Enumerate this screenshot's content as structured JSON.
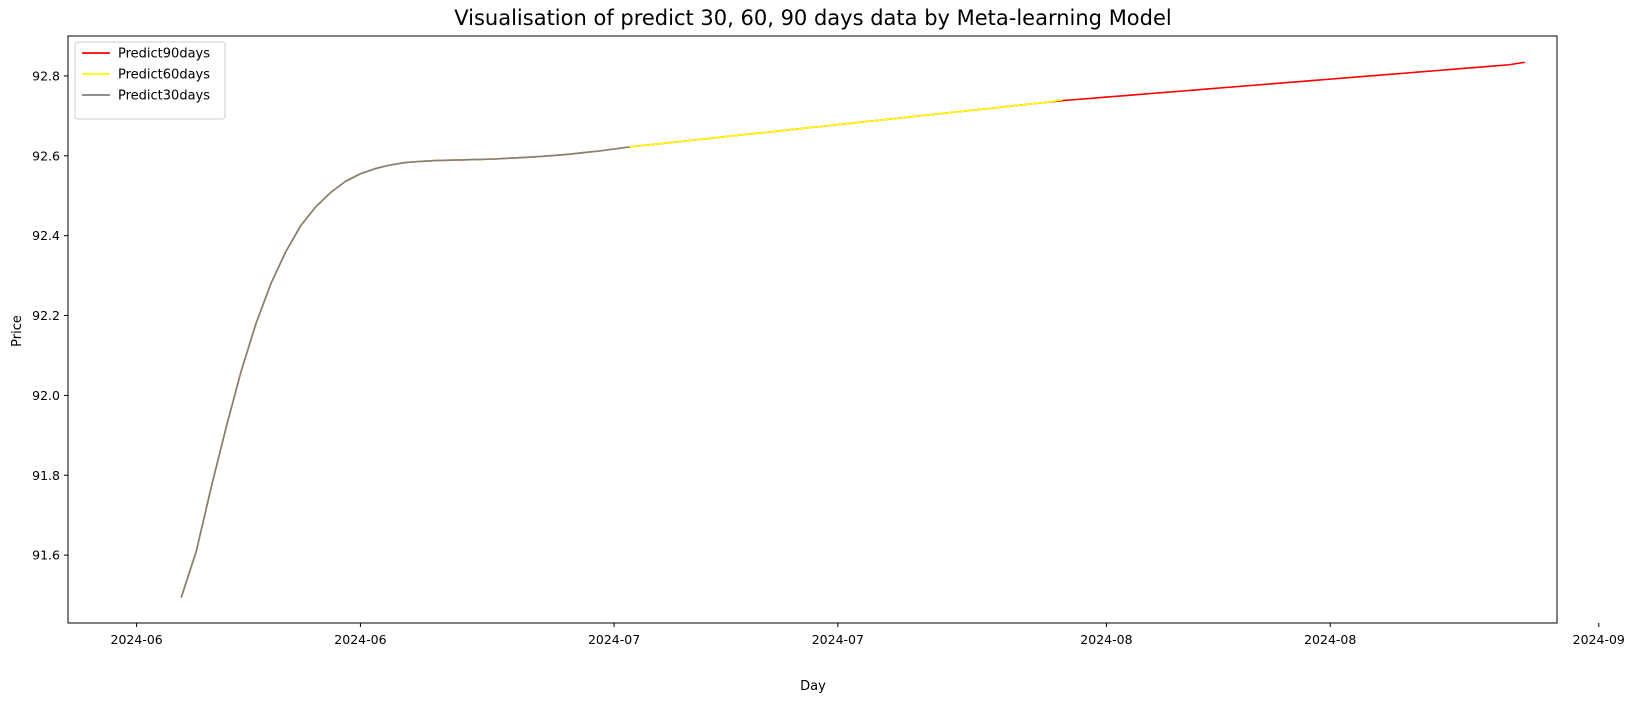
{
  "chart_data": {
    "type": "line",
    "title": "Visualisation of predict 30, 60, 90 days data by Meta-learning Model",
    "xlabel": "Day",
    "ylabel": "Price",
    "ylim": [
      91.43,
      92.9
    ],
    "xlim": [
      -4.6,
      95.2
    ],
    "yticks": [
      91.6,
      91.8,
      92.0,
      92.2,
      92.4,
      92.6,
      92.8
    ],
    "xticks": [
      {
        "pos": 0,
        "label": "2024-06"
      },
      {
        "pos": 15,
        "label": "2024-06"
      },
      {
        "pos": 32,
        "label": "2024-07"
      },
      {
        "pos": 47,
        "label": "2024-07"
      },
      {
        "pos": 65,
        "label": "2024-08"
      },
      {
        "pos": 80,
        "label": "2024-08"
      },
      {
        "pos": 98,
        "label": "2024-09"
      }
    ],
    "grid": false,
    "legend_position": "top-left",
    "legend": [
      "Predict90days",
      "Predict60days",
      "Predict30days"
    ],
    "series": [
      {
        "name": "Predict90days",
        "color": "#ff0000",
        "x_start": 3,
        "y": [
          91.495,
          91.61,
          91.77,
          91.92,
          92.06,
          92.18,
          92.28,
          92.36,
          92.425,
          92.472,
          92.508,
          92.536,
          92.555,
          92.568,
          92.577,
          92.583,
          92.586,
          92.588,
          92.589,
          92.59,
          92.591,
          92.592,
          92.594,
          92.596,
          92.598,
          92.601,
          92.604,
          92.608,
          92.612,
          92.617,
          92.622,
          92.626,
          92.63,
          92.634,
          92.638,
          92.642,
          92.646,
          92.65,
          92.654,
          92.658,
          92.662,
          92.666,
          92.67,
          92.674,
          92.678,
          92.682,
          92.686,
          92.69,
          92.694,
          92.698,
          92.702,
          92.706,
          92.71,
          92.714,
          92.718,
          92.722,
          92.726,
          92.73,
          92.734,
          92.738,
          92.741,
          92.744,
          92.747,
          92.75,
          92.753,
          92.756,
          92.759,
          92.762,
          92.765,
          92.768,
          92.771,
          92.774,
          92.777,
          92.78,
          92.783,
          92.786,
          92.789,
          92.792,
          92.795,
          92.798,
          92.801,
          92.804,
          92.807,
          92.81,
          92.813,
          92.816,
          92.819,
          92.822,
          92.825,
          92.828,
          92.834
        ]
      },
      {
        "name": "Predict60days",
        "color": "#ffff00",
        "x_start": 3,
        "y": [
          91.495,
          91.61,
          91.77,
          91.92,
          92.06,
          92.18,
          92.28,
          92.36,
          92.425,
          92.472,
          92.508,
          92.536,
          92.555,
          92.568,
          92.577,
          92.583,
          92.586,
          92.588,
          92.589,
          92.59,
          92.591,
          92.592,
          92.594,
          92.596,
          92.598,
          92.601,
          92.604,
          92.608,
          92.612,
          92.617,
          92.622,
          92.626,
          92.63,
          92.634,
          92.638,
          92.642,
          92.646,
          92.65,
          92.654,
          92.658,
          92.662,
          92.666,
          92.67,
          92.674,
          92.678,
          92.682,
          92.686,
          92.69,
          92.694,
          92.698,
          92.702,
          92.706,
          92.71,
          92.714,
          92.718,
          92.722,
          92.726,
          92.73,
          92.734,
          92.74
        ]
      },
      {
        "name": "Predict30days",
        "color": "#808080",
        "x_start": 3,
        "y": [
          91.495,
          91.61,
          91.77,
          91.92,
          92.06,
          92.18,
          92.28,
          92.36,
          92.425,
          92.472,
          92.508,
          92.536,
          92.555,
          92.568,
          92.577,
          92.583,
          92.586,
          92.588,
          92.589,
          92.59,
          92.591,
          92.592,
          92.594,
          92.596,
          92.598,
          92.601,
          92.604,
          92.608,
          92.612,
          92.617,
          92.622
        ]
      }
    ]
  }
}
